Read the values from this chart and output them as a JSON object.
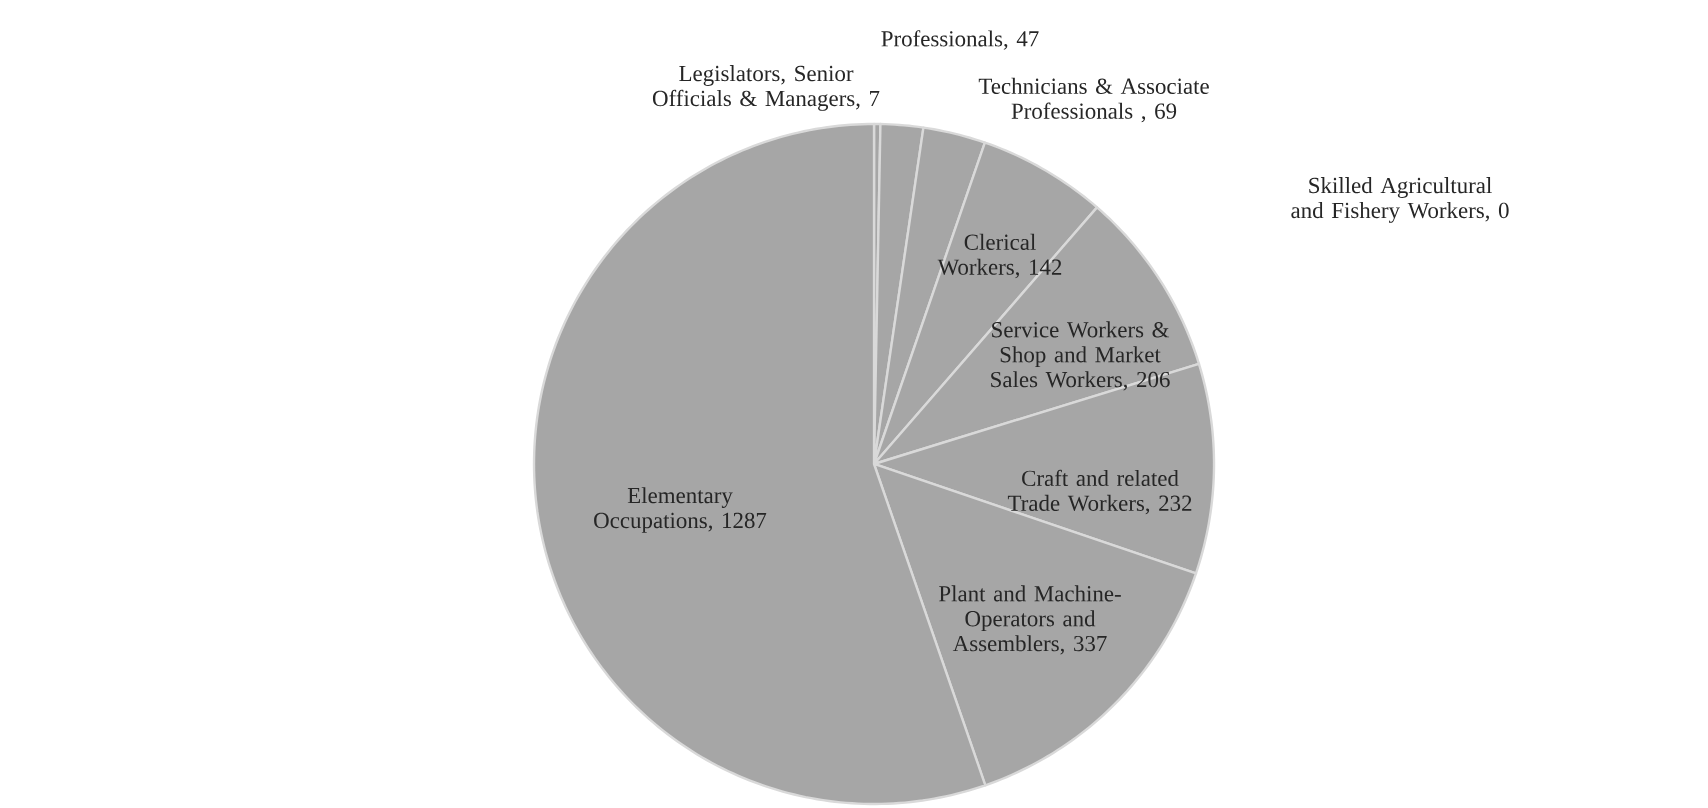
{
  "chart_data": {
    "type": "pie",
    "categories": [
      "Legislators, Senior Officials & Managers",
      "Professionals",
      "Technicians & Associate Professionals",
      "Clerical Workers",
      "Skilled Agricultural and Fishery Workers",
      "Service Workers & Shop and Market Sales Workers",
      "Craft and related Trade Workers",
      "Plant and Machine-Operators and Assemblers",
      "Elementary Occupations"
    ],
    "values": [
      7,
      47,
      69,
      142,
      0,
      206,
      232,
      337,
      1287
    ],
    "value_labels": [
      ", 7",
      ", 47",
      " , 69",
      ", 142",
      ", 0",
      ", 206",
      ", 232",
      ", 337",
      ", 1287"
    ],
    "data_labels": true,
    "colors": [
      "#a6a6a6",
      "#a6a6a6",
      "#a6a6a6",
      "#a6a6a6",
      "#a6a6a6",
      "#a6a6a6",
      "#a6a6a6",
      "#a6a6a6",
      "#a6a6a6"
    ]
  }
}
